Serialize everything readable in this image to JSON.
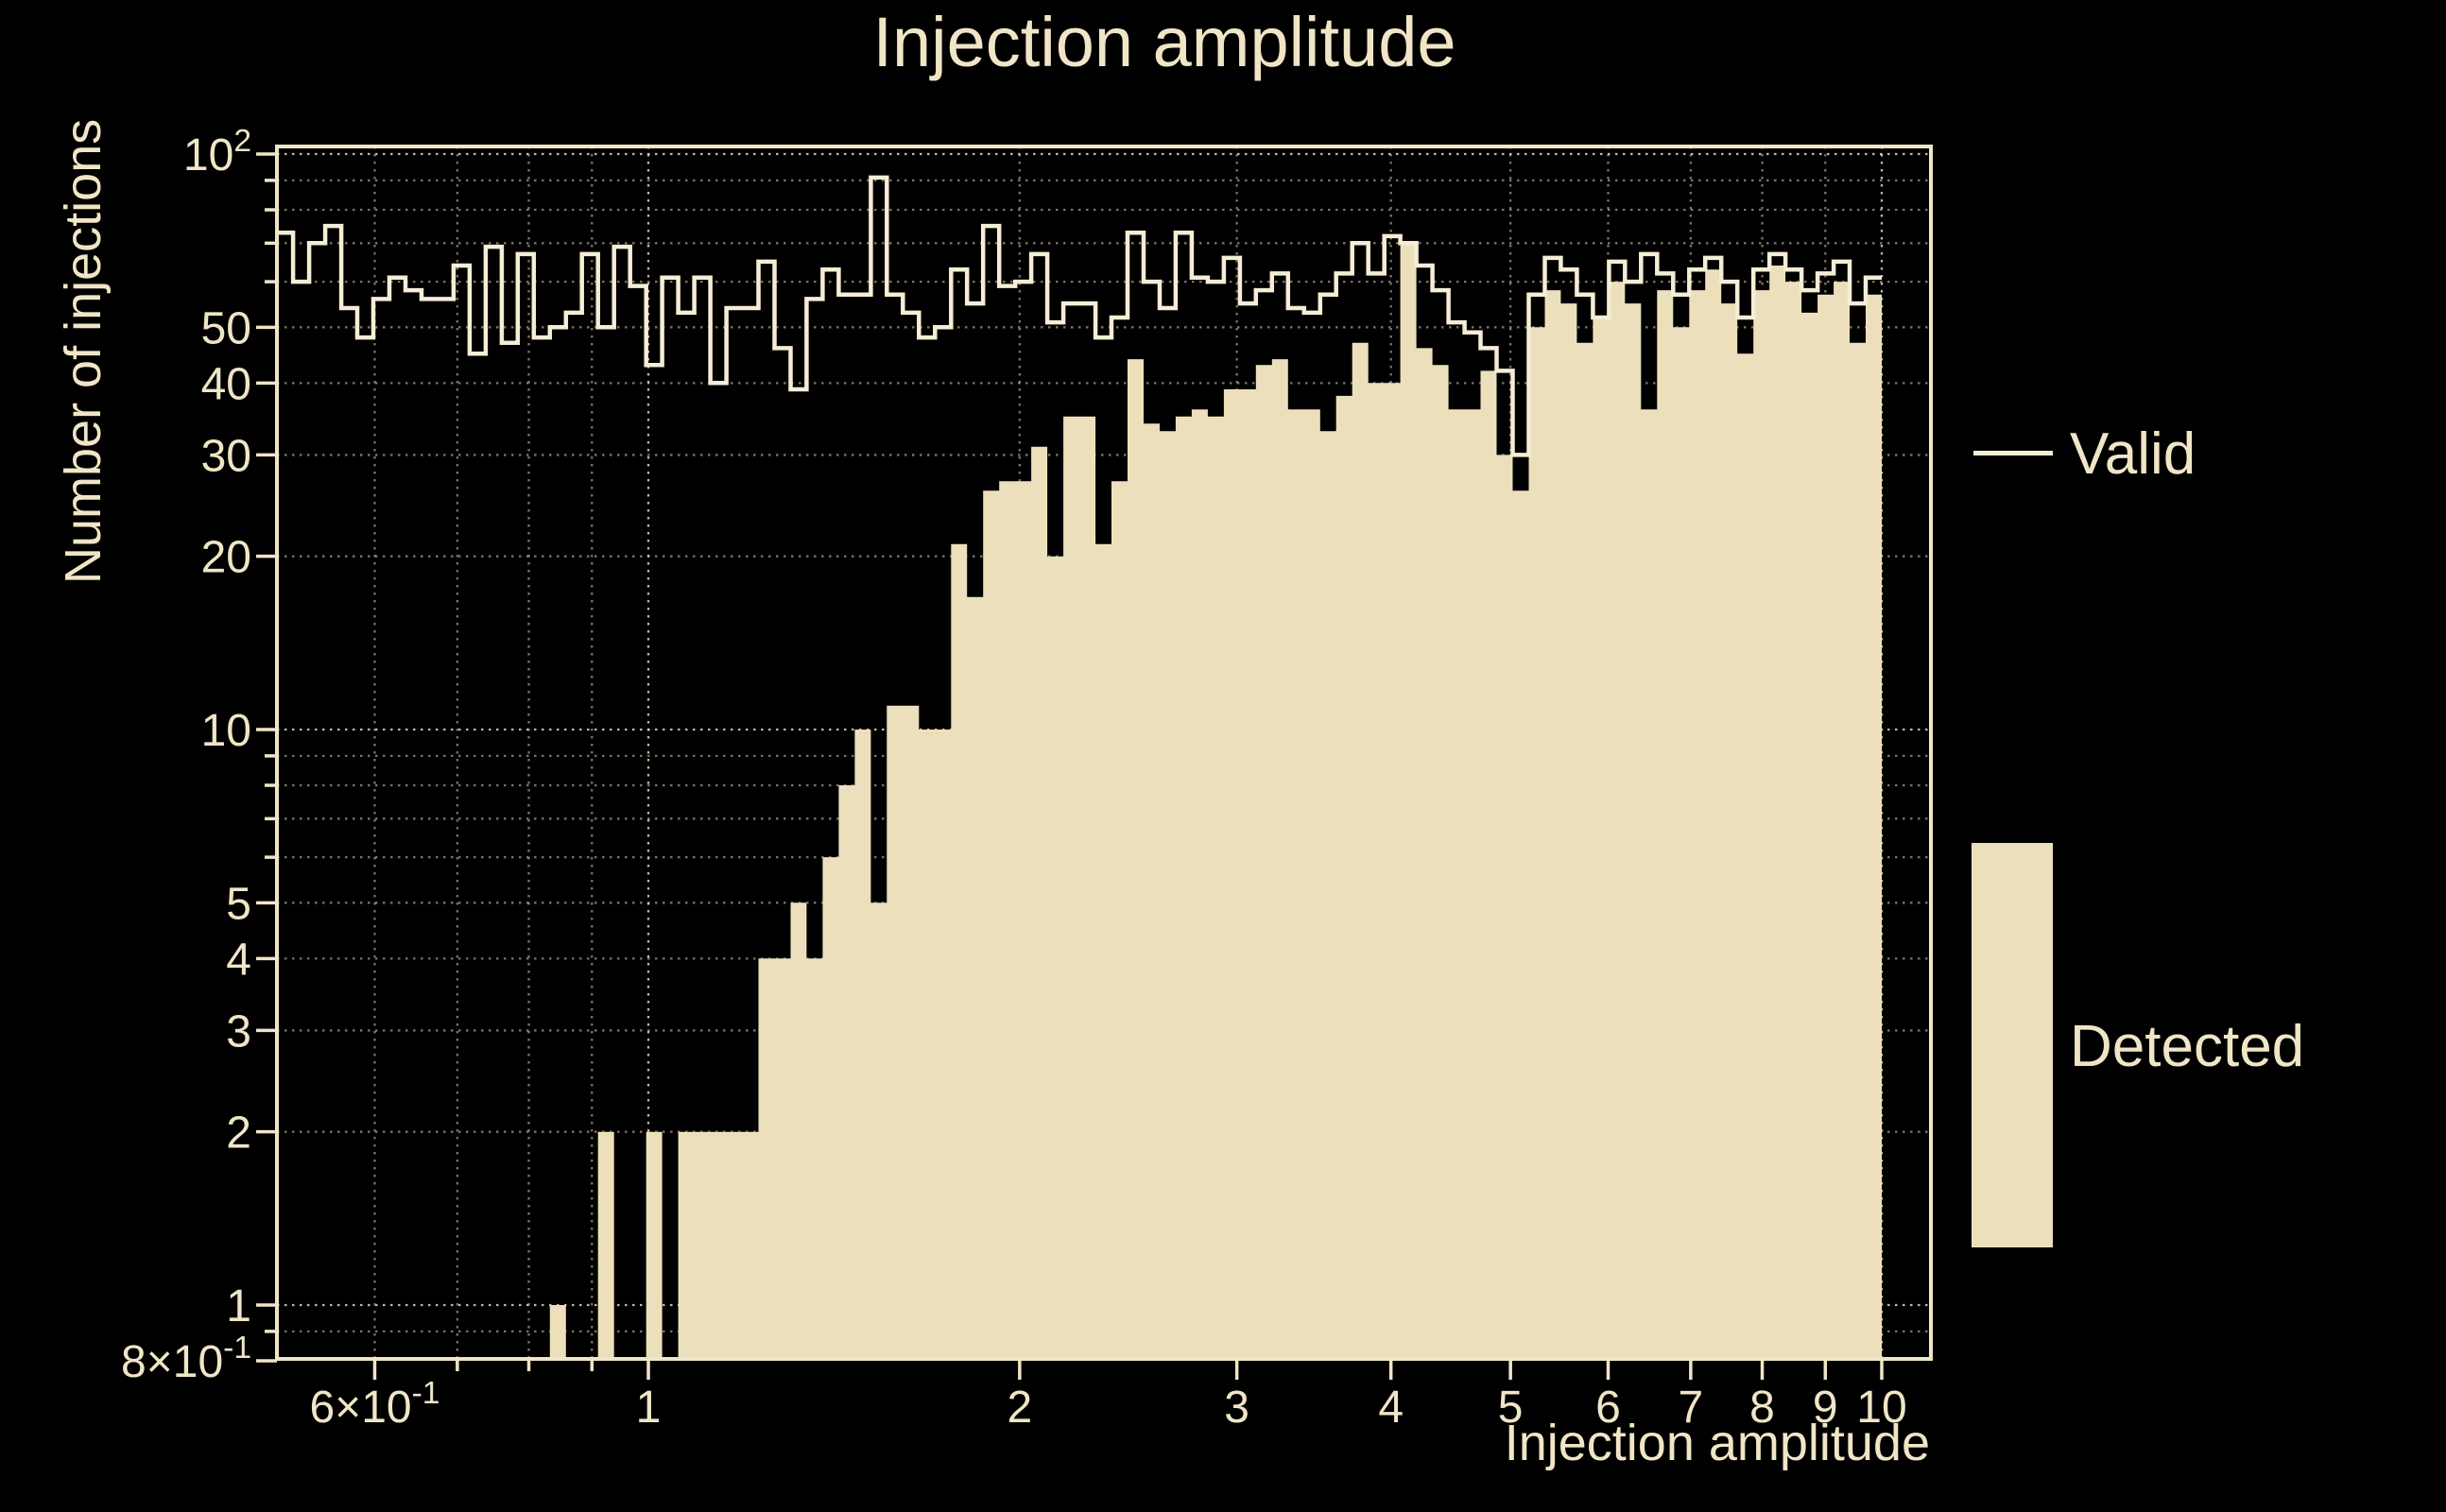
{
  "title": "Injection amplitude",
  "axes": {
    "xlabel": "Injection amplitude",
    "ylabel": "Number of injections"
  },
  "legend": {
    "items": [
      {
        "label": "Valid",
        "swatch": "line"
      },
      {
        "label": "Detected",
        "swatch": "filled-box"
      }
    ]
  },
  "colors": {
    "background": "#000000",
    "text": "#f0e5c6",
    "valid_line": "#f6edd6",
    "detected_fill": "#ece0bc",
    "grid": "#efe5c8",
    "spine": "#f0e5c6"
  },
  "chart_data": {
    "type": "bar",
    "subtype": "log-log histogram, step outline (Valid) over filled histogram (Detected)",
    "title": "Injection amplitude",
    "xlabel": "Injection amplitude",
    "ylabel": "Number of injections",
    "x_scale": "log",
    "y_scale": "log",
    "xlim": [
      0.5,
      10.9
    ],
    "ylim": [
      0.8,
      103
    ],
    "grid": "dotted",
    "legend_position": "right-outside",
    "bins": {
      "min": 0.5,
      "max": 10.0,
      "count": 100,
      "spacing": "log"
    },
    "series": [
      {
        "name": "Valid",
        "style": "step-outline",
        "values": [
          73,
          60,
          70,
          75,
          54,
          48,
          56,
          61,
          58,
          56,
          56,
          64,
          45,
          69,
          47,
          67,
          48,
          50,
          53,
          67,
          50,
          69,
          59,
          43,
          61,
          53,
          61,
          40,
          54,
          54,
          65,
          46,
          39,
          56,
          63,
          57,
          57,
          91,
          57,
          53,
          48,
          50,
          63,
          55,
          75,
          59,
          60,
          67,
          51,
          55,
          55,
          48,
          52,
          73,
          60,
          54,
          73,
          61,
          60,
          66,
          55,
          58,
          62,
          54,
          53,
          57,
          62,
          70,
          62,
          72,
          70,
          64,
          58,
          51,
          49,
          46,
          42,
          30,
          57,
          66,
          63,
          57,
          52,
          65,
          60,
          67,
          62,
          57,
          63,
          66,
          60,
          52,
          63,
          67,
          63,
          58,
          62,
          65,
          55,
          61
        ]
      },
      {
        "name": "Detected",
        "style": "filled-histogram",
        "values": [
          0,
          0,
          0,
          0,
          0,
          0,
          0,
          0,
          0,
          0,
          0,
          0,
          0,
          0,
          0,
          0,
          0,
          1,
          0,
          0,
          2,
          0,
          0,
          2,
          0,
          2,
          2,
          2,
          2,
          2,
          4,
          4,
          5,
          4,
          6,
          8,
          10,
          5,
          11,
          11,
          10,
          10,
          21,
          17,
          26,
          27,
          27,
          31,
          20,
          35,
          35,
          21,
          27,
          44,
          34,
          33,
          35,
          36,
          35,
          39,
          39,
          43,
          44,
          36,
          36,
          33,
          38,
          47,
          40,
          40,
          70,
          46,
          43,
          36,
          36,
          42,
          30,
          26,
          50,
          58,
          55,
          47,
          52,
          60,
          55,
          36,
          58,
          50,
          58,
          63,
          55,
          45,
          58,
          64,
          60,
          53,
          57,
          60,
          47,
          57
        ]
      }
    ],
    "x_ticks": [
      {
        "value": 0.6,
        "base": "6×10",
        "sup": "-1"
      },
      {
        "value": 1,
        "base": "1"
      },
      {
        "value": 2,
        "base": "2"
      },
      {
        "value": 3,
        "base": "3"
      },
      {
        "value": 4,
        "base": "4"
      },
      {
        "value": 5,
        "base": "5"
      },
      {
        "value": 6,
        "base": "6"
      },
      {
        "value": 7,
        "base": "7"
      },
      {
        "value": 8,
        "base": "8"
      },
      {
        "value": 9,
        "base": "9"
      },
      {
        "value": 10,
        "base": "10"
      }
    ],
    "x_minor_ticks": [
      0.7,
      0.8,
      0.9
    ],
    "y_ticks": [
      {
        "value": 100,
        "base": "10",
        "sup": "2"
      },
      {
        "value": 50,
        "base": "50"
      },
      {
        "value": 40,
        "base": "40"
      },
      {
        "value": 30,
        "base": "30"
      },
      {
        "value": 20,
        "base": "20"
      },
      {
        "value": 10,
        "base": "10"
      },
      {
        "value": 5,
        "base": "5"
      },
      {
        "value": 4,
        "base": "4"
      },
      {
        "value": 3,
        "base": "3"
      },
      {
        "value": 2,
        "base": "2"
      },
      {
        "value": 1,
        "base": "1"
      },
      {
        "value": 0.8,
        "base": "8×10",
        "sup": "-1"
      }
    ],
    "y_minor_ticks": [
      90,
      80,
      70,
      60,
      9,
      8,
      7,
      6,
      0.9
    ],
    "gridlines": {
      "x_major": [
        1,
        10
      ],
      "x_minor": [
        0.6,
        0.7,
        0.8,
        0.9,
        2,
        3,
        4,
        5,
        6,
        7,
        8,
        9
      ],
      "y_major": [
        100,
        10,
        1
      ],
      "y_minor": [
        90,
        80,
        70,
        60,
        50,
        40,
        30,
        20,
        9,
        8,
        7,
        6,
        5,
        4,
        3,
        2,
        0.9
      ]
    }
  }
}
